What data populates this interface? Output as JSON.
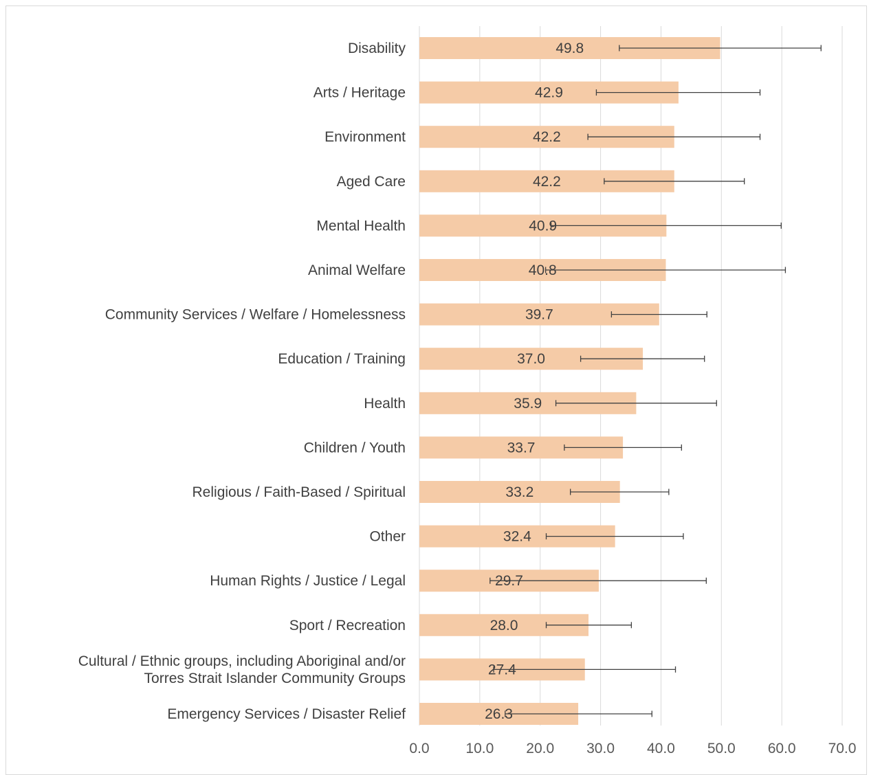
{
  "chart_data": {
    "type": "bar",
    "orientation": "horizontal",
    "title": "",
    "xlabel": "",
    "ylabel": "",
    "xlim": [
      0,
      70
    ],
    "x_ticks": [
      "0.0",
      "10.0",
      "20.0",
      "30.0",
      "40.0",
      "50.0",
      "60.0",
      "70.0"
    ],
    "grid": true,
    "legend": "none",
    "bar_color": "#f5cba7",
    "error_bar_color": "#404040",
    "categories": [
      "Disability",
      "Arts / Heritage",
      "Environment",
      "Aged Care",
      "Mental Health",
      "Animal Welfare",
      "Community Services / Welfare / Homelessness",
      "Education / Training",
      "Health",
      "Children / Youth",
      "Religious / Faith-Based / Spiritual",
      "Other",
      "Human Rights / Justice / Legal",
      "Sport / Recreation",
      "Cultural / Ethnic groups, including Aboriginal and/or Torres Strait Islander Community Groups",
      "Emergency Services / Disaster Relief"
    ],
    "category_lines": [
      [
        "Disability"
      ],
      [
        "Arts / Heritage"
      ],
      [
        "Environment"
      ],
      [
        "Aged Care"
      ],
      [
        "Mental Health"
      ],
      [
        "Animal Welfare"
      ],
      [
        "Community Services / Welfare / Homelessness"
      ],
      [
        "Education / Training"
      ],
      [
        "Health"
      ],
      [
        "Children / Youth"
      ],
      [
        "Religious / Faith-Based / Spiritual"
      ],
      [
        "Other"
      ],
      [
        "Human Rights / Justice / Legal"
      ],
      [
        "Sport / Recreation"
      ],
      [
        "Cultural / Ethnic groups, including Aboriginal and/or",
        "Torres Strait Islander Community Groups"
      ],
      [
        "Emergency Services / Disaster Relief"
      ]
    ],
    "values": [
      49.8,
      42.9,
      42.2,
      42.2,
      40.9,
      40.8,
      39.7,
      37.0,
      35.9,
      33.7,
      33.2,
      32.4,
      29.7,
      28.0,
      27.4,
      26.3
    ],
    "value_labels": [
      "49.8",
      "42.9",
      "42.2",
      "42.2",
      "40.9",
      "40.8",
      "39.7",
      "37.0",
      "35.9",
      "33.7",
      "33.2",
      "32.4",
      "29.7",
      "28.0",
      "27.4",
      "26.3"
    ],
    "error_low": [
      33.1,
      29.3,
      27.9,
      30.6,
      21.8,
      20.9,
      31.8,
      26.7,
      22.6,
      24.0,
      25.0,
      21.0,
      11.7,
      21.0,
      12.3,
      14.2
    ],
    "error_high": [
      66.5,
      56.4,
      56.4,
      53.8,
      59.9,
      60.6,
      47.6,
      47.2,
      49.2,
      43.4,
      41.3,
      43.7,
      47.5,
      35.1,
      42.4,
      38.5
    ]
  }
}
